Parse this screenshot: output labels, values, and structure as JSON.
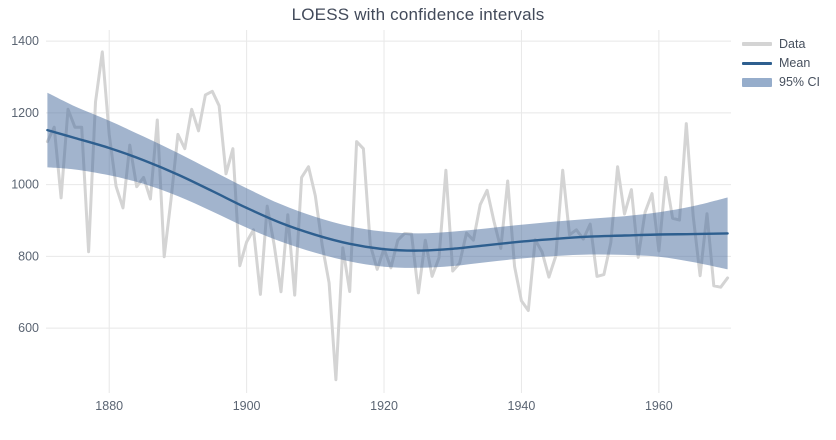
{
  "title": "LOESS with confidence intervals",
  "legend": {
    "items": [
      {
        "label": "Data",
        "swatch": "line",
        "color": "#d4d4d4"
      },
      {
        "label": "Mean",
        "swatch": "line",
        "color": "#2e5f8f"
      },
      {
        "label": "95% CI",
        "swatch": "band",
        "color": "#96adcb"
      }
    ]
  },
  "colors": {
    "background": "#ffffff",
    "grid": "#e8e8e8",
    "tick_text": "#5b6573",
    "title_text": "#424a5a",
    "data_line": "#d4d4d4",
    "mean_line": "#2e5f8f",
    "ci_band_fill": "rgba(69,105,155,0.5)"
  },
  "chart_data": {
    "type": "line",
    "title": "LOESS with confidence intervals",
    "xlabel": "",
    "ylabel": "",
    "x_range": [
      1870.8,
      1970.5
    ],
    "y_range": [
      419,
      1431
    ],
    "x_ticks": [
      1880,
      1900,
      1920,
      1940,
      1960
    ],
    "y_ticks": [
      600,
      800,
      1000,
      1200,
      1400
    ],
    "grid": true,
    "legend_position": "outside-top-right",
    "series": [
      {
        "name": "Data",
        "type": "line",
        "color": "#d4d4d4",
        "width": 3,
        "x_start": 1871,
        "x_step": 1,
        "values": [
          1120,
          1160,
          963,
          1210,
          1160,
          1160,
          813,
          1230,
          1370,
          1140,
          995,
          935,
          1110,
          994,
          1020,
          960,
          1180,
          799,
          958,
          1140,
          1100,
          1210,
          1150,
          1250,
          1260,
          1220,
          1030,
          1100,
          774,
          840,
          874,
          694,
          940,
          833,
          701,
          916,
          692,
          1020,
          1050,
          969,
          831,
          726,
          456,
          824,
          702,
          1120,
          1100,
          832,
          764,
          821,
          768,
          845,
          864,
          862,
          698,
          845,
          744,
          796,
          1040,
          759,
          781,
          865,
          845,
          944,
          984,
          897,
          822,
          1010,
          771,
          676,
          649,
          846,
          812,
          742,
          801,
          1040,
          860,
          874,
          848,
          890,
          744,
          749,
          838,
          1050,
          918,
          986,
          797,
          923,
          975,
          815,
          1020,
          906,
          901,
          1170,
          912,
          746,
          919,
          718,
          714,
          740
        ]
      },
      {
        "name": "Mean",
        "type": "smooth-line",
        "color": "#2e5f8f",
        "width": 2.4,
        "x": [
          1871,
          1875,
          1880,
          1885,
          1890,
          1895,
          1900,
          1905,
          1910,
          1915,
          1920,
          1925,
          1930,
          1935,
          1940,
          1945,
          1950,
          1955,
          1960,
          1965,
          1970
        ],
        "values": [
          1152,
          1130,
          1102,
          1068,
          1028,
          982,
          935,
          893,
          860,
          835,
          820,
          816,
          821,
          831,
          841,
          849,
          855,
          858,
          861,
          862,
          864
        ]
      },
      {
        "name": "95% CI",
        "type": "band",
        "fill": "rgba(69,105,155,0.5)",
        "x": [
          1871,
          1875,
          1880,
          1885,
          1890,
          1895,
          1900,
          1905,
          1910,
          1915,
          1920,
          1925,
          1930,
          1935,
          1940,
          1945,
          1950,
          1955,
          1960,
          1965,
          1970
        ],
        "upper": [
          1256,
          1218,
          1178,
          1134,
          1088,
          1039,
          990,
          945,
          910,
          884,
          869,
          864,
          869,
          878,
          888,
          897,
          905,
          912,
          923,
          940,
          964
        ],
        "lower": [
          1048,
          1042,
          1026,
          1002,
          968,
          925,
          880,
          841,
          810,
          786,
          771,
          768,
          773,
          784,
          794,
          801,
          805,
          804,
          799,
          784,
          764
        ]
      }
    ]
  }
}
